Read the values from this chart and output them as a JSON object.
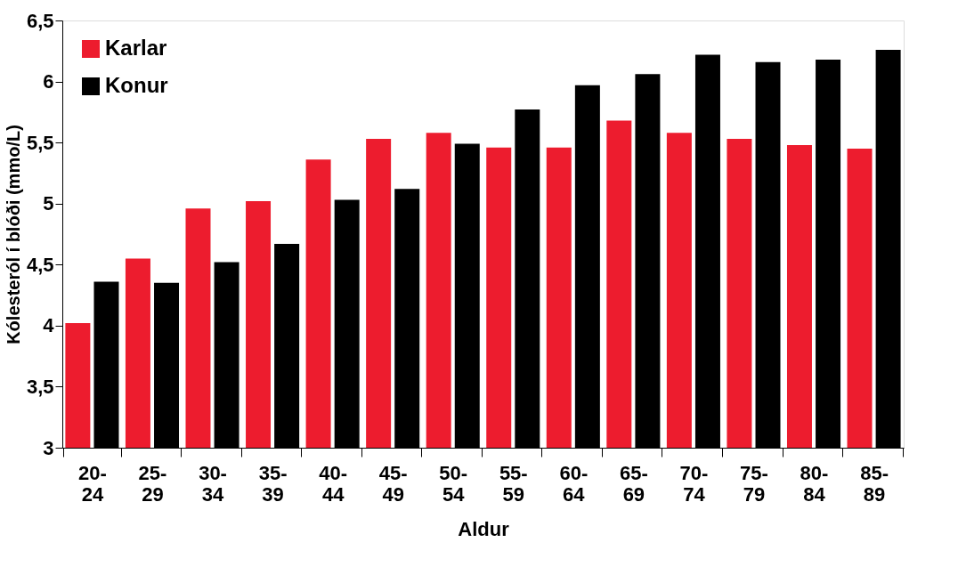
{
  "chart_data": {
    "type": "bar",
    "xlabel": "Aldur",
    "ylabel": "Kólesteról í blóði (mmo/L)",
    "categories": [
      "20-24",
      "25-29",
      "30-34",
      "35-39",
      "40-44",
      "45-49",
      "50-54",
      "55-59",
      "60-64",
      "65-69",
      "70-74",
      "75-79",
      "80-84",
      "85-89"
    ],
    "series": [
      {
        "name": "Karlar",
        "color": "#ed1c2e",
        "values": [
          4.02,
          4.55,
          4.96,
          5.02,
          5.36,
          5.53,
          5.58,
          5.46,
          5.46,
          5.68,
          5.58,
          5.53,
          5.48,
          5.45
        ]
      },
      {
        "name": "Konur",
        "color": "#000000",
        "values": [
          4.36,
          4.35,
          4.52,
          4.67,
          5.03,
          5.12,
          5.49,
          5.77,
          5.97,
          6.06,
          6.22,
          6.16,
          6.18,
          6.26
        ]
      }
    ],
    "ylim": [
      3,
      6.5
    ],
    "yticks": [
      3,
      {
        "value": 3.5,
        "label": "3,5"
      },
      4,
      {
        "value": 4.5,
        "label": "4,5"
      },
      5,
      {
        "value": 5.5,
        "label": "5,5"
      },
      6,
      {
        "value": 6.5,
        "label": "6,5"
      }
    ],
    "grid": false,
    "legend": "top left"
  }
}
